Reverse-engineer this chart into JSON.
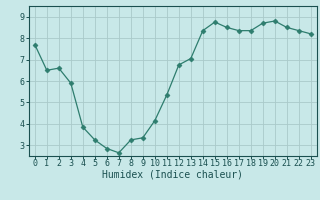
{
  "x": [
    0,
    1,
    2,
    3,
    4,
    5,
    6,
    7,
    8,
    9,
    10,
    11,
    12,
    13,
    14,
    15,
    16,
    17,
    18,
    19,
    20,
    21,
    22,
    23
  ],
  "y": [
    7.7,
    6.5,
    6.6,
    5.9,
    3.85,
    3.25,
    2.85,
    2.65,
    3.25,
    3.35,
    4.15,
    5.35,
    6.75,
    7.05,
    8.35,
    8.75,
    8.5,
    8.35,
    8.35,
    8.7,
    8.8,
    8.5,
    8.35,
    8.2
  ],
  "line_color": "#2e7d6e",
  "marker": "D",
  "marker_size": 2.5,
  "bg_color": "#c8e8e8",
  "grid_color": "#aacaca",
  "xlabel": "Humidex (Indice chaleur)",
  "xlim": [
    -0.5,
    23.5
  ],
  "ylim": [
    2.5,
    9.5
  ],
  "yticks": [
    3,
    4,
    5,
    6,
    7,
    8,
    9
  ],
  "xticks": [
    0,
    1,
    2,
    3,
    4,
    5,
    6,
    7,
    8,
    9,
    10,
    11,
    12,
    13,
    14,
    15,
    16,
    17,
    18,
    19,
    20,
    21,
    22,
    23
  ],
  "font_color": "#1a5050",
  "tick_fontsize": 6,
  "xlabel_fontsize": 7
}
